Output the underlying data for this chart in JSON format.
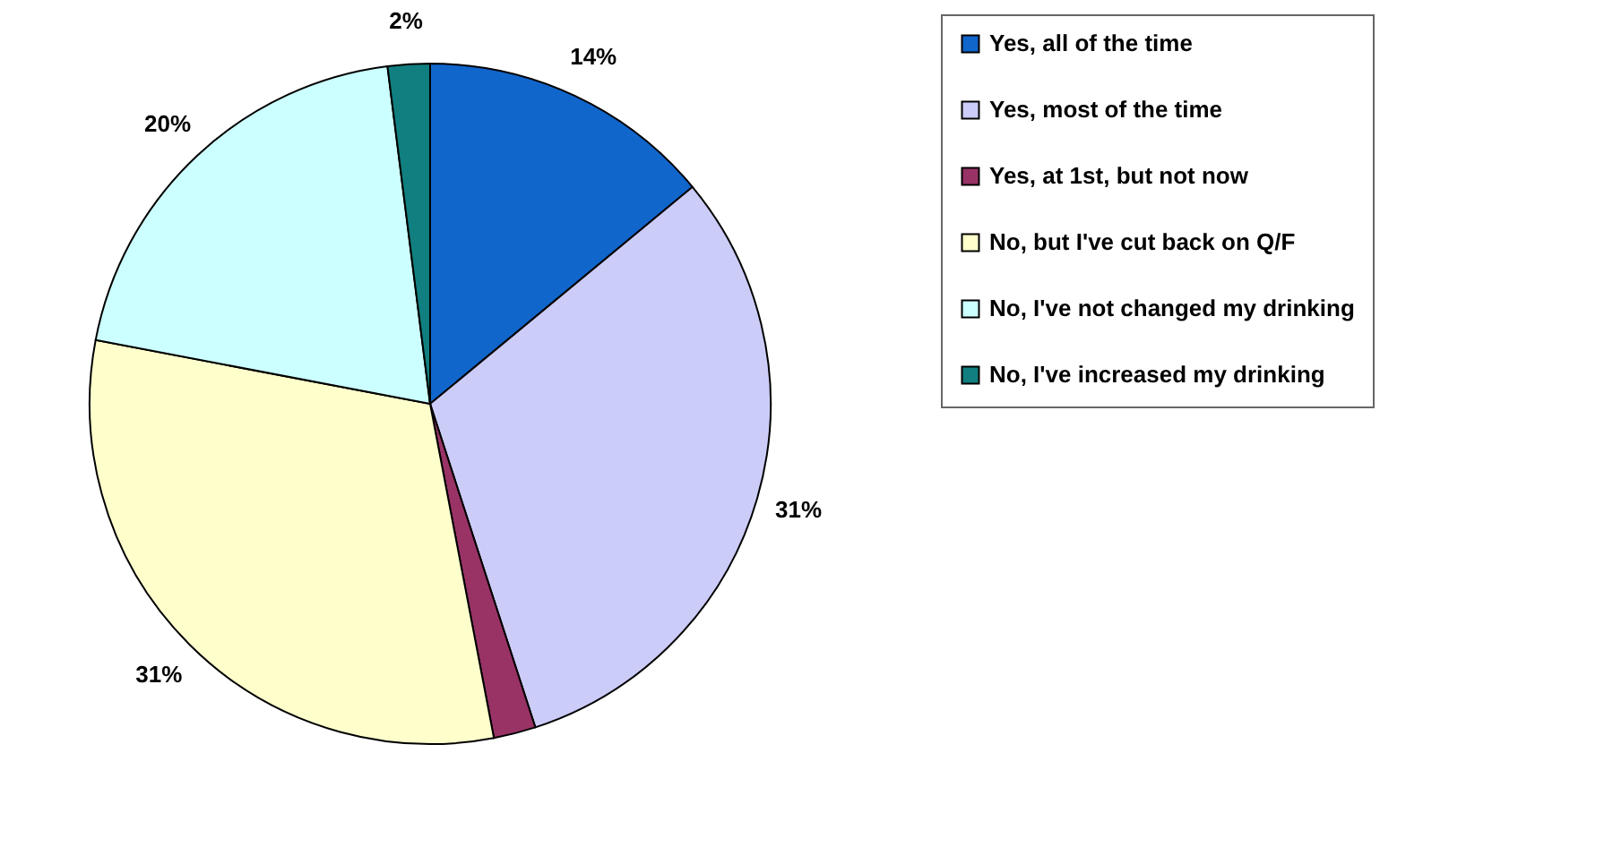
{
  "chart_data": {
    "type": "pie",
    "categories": [
      "Yes, all of the time",
      "Yes, most of the time",
      "Yes, at 1st, but not now",
      "No, but I've cut back on Q/F",
      "No, I've not changed my drinking",
      "No, I've increased my drinking"
    ],
    "values": [
      14,
      31,
      2,
      31,
      20,
      2
    ],
    "colors": [
      "#1166cc",
      "#ccccf8",
      "#993366",
      "#ffffcc",
      "#ccffff",
      "#117f7f"
    ],
    "value_labels": [
      "14%",
      "31%",
      null,
      "31%",
      "20%",
      "2%"
    ],
    "legend": "right"
  }
}
